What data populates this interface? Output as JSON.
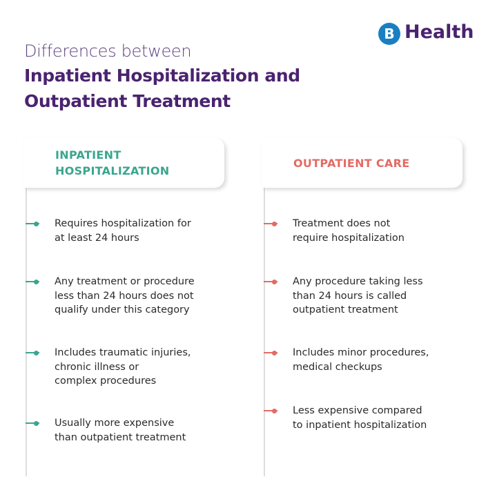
{
  "logo": {
    "text": "Health"
  },
  "title": {
    "line1": "Differences between",
    "line2": "Inpatient Hospitalization and",
    "line3": "Outpatient Treatment"
  },
  "columns": [
    {
      "header": [
        "INPATIENT",
        "HOSPITALIZATION"
      ],
      "items": [
        [
          "Requires hospitalization for",
          "at least 24 hours"
        ],
        [
          "Any treatment or procedure",
          "less than 24 hours does not",
          "qualify under this category"
        ],
        [
          "Includes traumatic injuries,",
          "chronic illness or",
          "complex procedures"
        ],
        [
          "Usually more expensive",
          "than outpatient treatment"
        ]
      ]
    },
    {
      "header": [
        "OUTPATIENT CARE"
      ],
      "items": [
        [
          "Treatment does not",
          "require hospitalization"
        ],
        [
          "Any procedure taking less",
          "than 24 hours is called",
          "outpatient treatment"
        ],
        [
          "Includes minor procedures,",
          "medical checkups"
        ],
        [
          "Less expensive compared",
          "to inpatient hospitalization"
        ]
      ]
    }
  ]
}
